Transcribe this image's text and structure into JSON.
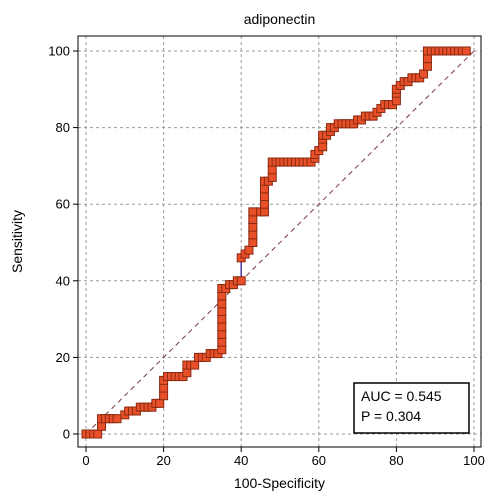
{
  "chart_data": {
    "type": "line",
    "title": "adiponectin",
    "xlabel": "100-Specificity",
    "ylabel": "Sensitivity",
    "xlim": [
      0,
      100
    ],
    "ylim": [
      0,
      100
    ],
    "xticks": [
      0,
      20,
      40,
      60,
      80,
      100
    ],
    "yticks": [
      0,
      20,
      40,
      60,
      80,
      100
    ],
    "grid": true,
    "colors": {
      "curve": "#4a3aa8",
      "marker_fill": "#e8502a",
      "marker_edge": "#8b2a10",
      "diagonal": "#7a3b3b",
      "grid": "#9a9a9a"
    },
    "series": [
      {
        "values": [
          [
            0,
            0
          ],
          [
            1,
            0
          ],
          [
            2,
            0
          ],
          [
            3,
            0
          ],
          [
            4,
            2
          ],
          [
            4,
            4
          ],
          [
            5,
            4
          ],
          [
            6,
            4
          ],
          [
            7,
            4
          ],
          [
            8,
            4
          ],
          [
            10,
            5
          ],
          [
            11,
            6
          ],
          [
            12,
            6
          ],
          [
            13,
            6
          ],
          [
            14,
            7
          ],
          [
            15,
            7
          ],
          [
            16,
            7
          ],
          [
            17,
            7
          ],
          [
            18,
            8
          ],
          [
            19,
            8
          ],
          [
            20,
            10
          ],
          [
            20,
            12
          ],
          [
            20,
            14
          ],
          [
            21,
            15
          ],
          [
            22,
            15
          ],
          [
            23,
            15
          ],
          [
            24,
            15
          ],
          [
            25,
            15
          ],
          [
            26,
            16
          ],
          [
            26,
            18
          ],
          [
            27,
            18
          ],
          [
            28,
            18
          ],
          [
            29,
            20
          ],
          [
            30,
            20
          ],
          [
            31,
            20
          ],
          [
            32,
            21
          ],
          [
            33,
            21
          ],
          [
            34,
            21
          ],
          [
            35,
            22
          ],
          [
            35,
            24
          ],
          [
            35,
            26
          ],
          [
            35,
            28
          ],
          [
            35,
            30
          ],
          [
            35,
            32
          ],
          [
            35,
            34
          ],
          [
            35,
            36
          ],
          [
            35,
            38
          ],
          [
            36,
            38
          ],
          [
            37,
            39
          ],
          [
            38,
            39
          ],
          [
            39,
            40
          ],
          [
            40,
            40
          ],
          [
            40,
            46
          ],
          [
            41,
            47
          ],
          [
            42,
            48
          ],
          [
            43,
            50
          ],
          [
            43,
            52
          ],
          [
            43,
            54
          ],
          [
            43,
            56
          ],
          [
            43,
            58
          ],
          [
            45,
            58
          ],
          [
            46,
            58
          ],
          [
            46,
            60
          ],
          [
            46,
            62
          ],
          [
            46,
            64
          ],
          [
            46,
            66
          ],
          [
            47,
            66
          ],
          [
            48,
            67
          ],
          [
            48,
            69
          ],
          [
            48,
            71
          ],
          [
            49,
            71
          ],
          [
            50,
            71
          ],
          [
            51,
            71
          ],
          [
            52,
            71
          ],
          [
            53,
            71
          ],
          [
            54,
            71
          ],
          [
            55,
            71
          ],
          [
            56,
            71
          ],
          [
            57,
            71
          ],
          [
            58,
            71
          ],
          [
            59,
            72
          ],
          [
            59,
            73
          ],
          [
            60,
            74
          ],
          [
            61,
            75
          ],
          [
            61,
            77
          ],
          [
            61,
            78
          ],
          [
            62,
            78
          ],
          [
            63,
            79
          ],
          [
            63,
            80
          ],
          [
            64,
            80
          ],
          [
            65,
            81
          ],
          [
            66,
            81
          ],
          [
            67,
            81
          ],
          [
            68,
            81
          ],
          [
            69,
            81
          ],
          [
            70,
            82
          ],
          [
            71,
            82
          ],
          [
            72,
            83
          ],
          [
            73,
            83
          ],
          [
            74,
            83
          ],
          [
            75,
            84
          ],
          [
            76,
            85
          ],
          [
            77,
            86
          ],
          [
            78,
            86
          ],
          [
            79,
            86
          ],
          [
            80,
            87
          ],
          [
            80,
            89
          ],
          [
            80,
            90
          ],
          [
            81,
            91
          ],
          [
            82,
            92
          ],
          [
            83,
            92
          ],
          [
            84,
            93
          ],
          [
            85,
            93
          ],
          [
            86,
            93
          ],
          [
            87,
            94
          ],
          [
            88,
            96
          ],
          [
            88,
            98
          ],
          [
            88,
            100
          ],
          [
            89,
            100
          ],
          [
            90,
            100
          ],
          [
            91,
            100
          ],
          [
            92,
            100
          ],
          [
            93,
            100
          ],
          [
            94,
            100
          ],
          [
            95,
            100
          ],
          [
            96,
            100
          ],
          [
            97,
            100
          ],
          [
            98,
            100
          ]
        ]
      }
    ],
    "annotation": {
      "auc_text": "AUC = 0.545",
      "p_text": "P = 0.304",
      "placement": "bottom-right"
    }
  }
}
